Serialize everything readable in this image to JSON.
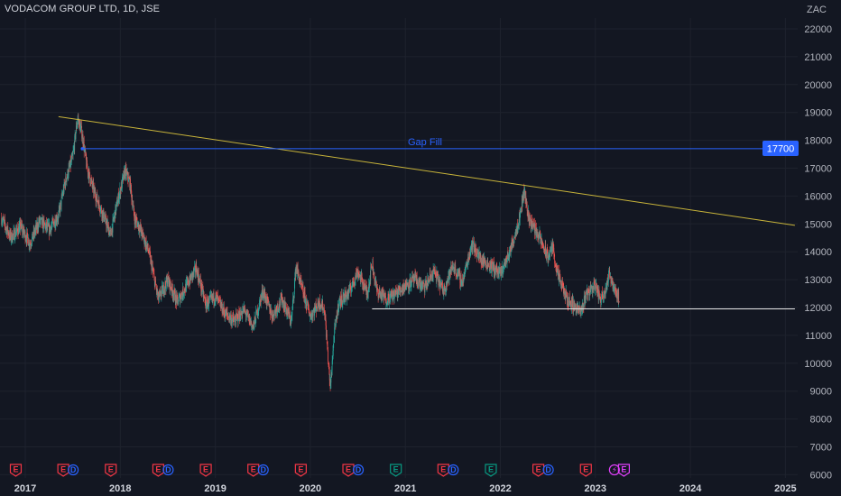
{
  "header": {
    "title": "VODACOM GROUP LTD, 1D, JSE"
  },
  "chart_data": {
    "type": "candlestick",
    "currency_label": "ZAC",
    "ylim": [
      6000,
      22500
    ],
    "y_ticks": [
      22000,
      21000,
      20000,
      19000,
      18000,
      17000,
      16000,
      15000,
      14000,
      13000,
      12000,
      11000,
      10000,
      9000,
      8000,
      7000,
      6000
    ],
    "x_ticks": [
      "2017",
      "2018",
      "2019",
      "2020",
      "2021",
      "2022",
      "2023",
      "2024",
      "2025"
    ],
    "x_tick_years": [
      2017,
      2018,
      2019,
      2020,
      2021,
      2022,
      2023,
      2024,
      2025
    ],
    "xlim_years": [
      2016.75,
      2025.15
    ],
    "price_path": [
      [
        2016.75,
        15200
      ],
      [
        2016.85,
        14500
      ],
      [
        2016.95,
        14900
      ],
      [
        2017.05,
        14300
      ],
      [
        2017.15,
        15100
      ],
      [
        2017.25,
        14800
      ],
      [
        2017.35,
        15300
      ],
      [
        2017.42,
        16500
      ],
      [
        2017.5,
        17400
      ],
      [
        2017.55,
        18800
      ],
      [
        2017.6,
        18200
      ],
      [
        2017.65,
        17000
      ],
      [
        2017.72,
        16200
      ],
      [
        2017.8,
        15500
      ],
      [
        2017.9,
        14600
      ],
      [
        2017.95,
        15500
      ],
      [
        2018.05,
        16900
      ],
      [
        2018.1,
        16500
      ],
      [
        2018.15,
        15200
      ],
      [
        2018.2,
        14900
      ],
      [
        2018.3,
        14000
      ],
      [
        2018.4,
        12300
      ],
      [
        2018.5,
        13000
      ],
      [
        2018.6,
        12200
      ],
      [
        2018.7,
        12800
      ],
      [
        2018.8,
        13400
      ],
      [
        2018.9,
        12100
      ],
      [
        2019.0,
        12400
      ],
      [
        2019.1,
        11800
      ],
      [
        2019.2,
        11500
      ],
      [
        2019.3,
        11900
      ],
      [
        2019.4,
        11300
      ],
      [
        2019.5,
        12600
      ],
      [
        2019.6,
        11700
      ],
      [
        2019.7,
        12300
      ],
      [
        2019.8,
        11500
      ],
      [
        2019.85,
        13500
      ],
      [
        2019.9,
        12800
      ],
      [
        2020.0,
        11700
      ],
      [
        2020.1,
        12200
      ],
      [
        2020.15,
        11900
      ],
      [
        2020.18,
        10500
      ],
      [
        2020.21,
        9100
      ],
      [
        2020.25,
        11000
      ],
      [
        2020.3,
        12200
      ],
      [
        2020.4,
        12500
      ],
      [
        2020.5,
        13300
      ],
      [
        2020.6,
        12500
      ],
      [
        2020.65,
        13600
      ],
      [
        2020.7,
        12600
      ],
      [
        2020.8,
        12300
      ],
      [
        2020.9,
        12500
      ],
      [
        2021.0,
        12800
      ],
      [
        2021.1,
        13000
      ],
      [
        2021.2,
        12700
      ],
      [
        2021.3,
        13300
      ],
      [
        2021.4,
        12600
      ],
      [
        2021.5,
        13500
      ],
      [
        2021.6,
        12900
      ],
      [
        2021.7,
        14300
      ],
      [
        2021.8,
        13700
      ],
      [
        2021.9,
        13500
      ],
      [
        2022.0,
        13200
      ],
      [
        2022.1,
        14000
      ],
      [
        2022.2,
        15200
      ],
      [
        2022.25,
        16200
      ],
      [
        2022.3,
        15200
      ],
      [
        2022.4,
        14600
      ],
      [
        2022.5,
        13800
      ],
      [
        2022.55,
        14200
      ],
      [
        2022.6,
        13200
      ],
      [
        2022.7,
        12300
      ],
      [
        2022.8,
        12000
      ],
      [
        2022.85,
        11800
      ],
      [
        2022.9,
        12500
      ],
      [
        2023.0,
        12800
      ],
      [
        2023.05,
        12300
      ],
      [
        2023.1,
        12600
      ],
      [
        2023.15,
        13200
      ],
      [
        2023.2,
        12700
      ],
      [
        2023.25,
        12300
      ]
    ],
    "lines": [
      {
        "name": "trendline",
        "color": "#c8b43a",
        "from": [
          2017.35,
          18850
        ],
        "to": [
          2025.1,
          14950
        ]
      },
      {
        "name": "gap-fill-line",
        "color": "#2962ff",
        "from": [
          2017.6,
          17700
        ],
        "to": [
          2025.1,
          17700
        ],
        "label": "Gap Fill"
      },
      {
        "name": "support-line",
        "color": "#e8e8e8",
        "from": [
          2020.65,
          11950
        ],
        "to": [
          2025.1,
          11950
        ]
      }
    ],
    "price_badge": {
      "value": "17700",
      "color": "#2962ff"
    },
    "colors": {
      "up": "#26a69a",
      "down": "#ef5350",
      "grid": "#1e222d",
      "earnings": "#f23645",
      "dividend": "#2962ff",
      "earnings_future": "#089981",
      "split": "#e040fb"
    },
    "events": [
      {
        "year": 2016.9,
        "kind": "E"
      },
      {
        "year": 2017.4,
        "kind": "E",
        "dividend": true
      },
      {
        "year": 2017.9,
        "kind": "E"
      },
      {
        "year": 2018.4,
        "kind": "E",
        "dividend": true
      },
      {
        "year": 2018.9,
        "kind": "E"
      },
      {
        "year": 2019.4,
        "kind": "E",
        "dividend": true
      },
      {
        "year": 2019.9,
        "kind": "E"
      },
      {
        "year": 2020.4,
        "kind": "E",
        "dividend": true
      },
      {
        "year": 2020.9,
        "kind": "E",
        "green": true
      },
      {
        "year": 2021.4,
        "kind": "E",
        "dividend": true
      },
      {
        "year": 2021.9,
        "kind": "E",
        "green": true
      },
      {
        "year": 2022.4,
        "kind": "E",
        "dividend": true
      },
      {
        "year": 2022.9,
        "kind": "E"
      },
      {
        "year": 2023.2,
        "kind": "split"
      },
      {
        "year": 2023.3,
        "kind": "E",
        "future": true
      }
    ]
  }
}
